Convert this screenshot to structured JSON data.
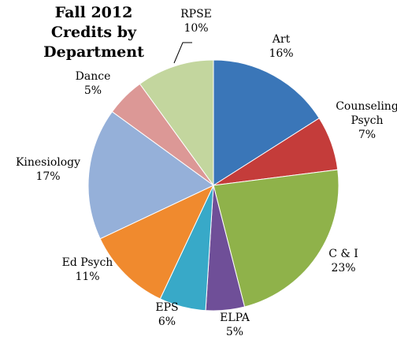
{
  "chart_data": {
    "type": "pie",
    "title": "Fall 2012",
    "subtitle": "Credits by Department",
    "slices": [
      {
        "label": "Art",
        "value": 16,
        "value_label": "16%",
        "color": "#3a76b8"
      },
      {
        "label": "Counseling Psych",
        "label_lines": [
          "Counseling",
          "Psych"
        ],
        "value": 7,
        "value_label": "7%",
        "color": "#c43c3a"
      },
      {
        "label": "C & I",
        "value": 23,
        "value_label": "23%",
        "color": "#8fb24a"
      },
      {
        "label": "ELPA",
        "value": 5,
        "value_label": "5%",
        "color": "#6f4f98"
      },
      {
        "label": "EPS",
        "value": 6,
        "value_label": "6%",
        "color": "#38a9c8"
      },
      {
        "label": "Ed Psych",
        "value": 11,
        "value_label": "11%",
        "color": "#f08a2e"
      },
      {
        "label": "Kinesiology",
        "value": 17,
        "value_label": "17%",
        "color": "#95b0d9"
      },
      {
        "label": "Dance",
        "value": 5,
        "value_label": "5%",
        "color": "#dc9896"
      },
      {
        "label": "RPSE",
        "value": 10,
        "value_label": "10%",
        "color": "#c3d69e"
      }
    ]
  }
}
